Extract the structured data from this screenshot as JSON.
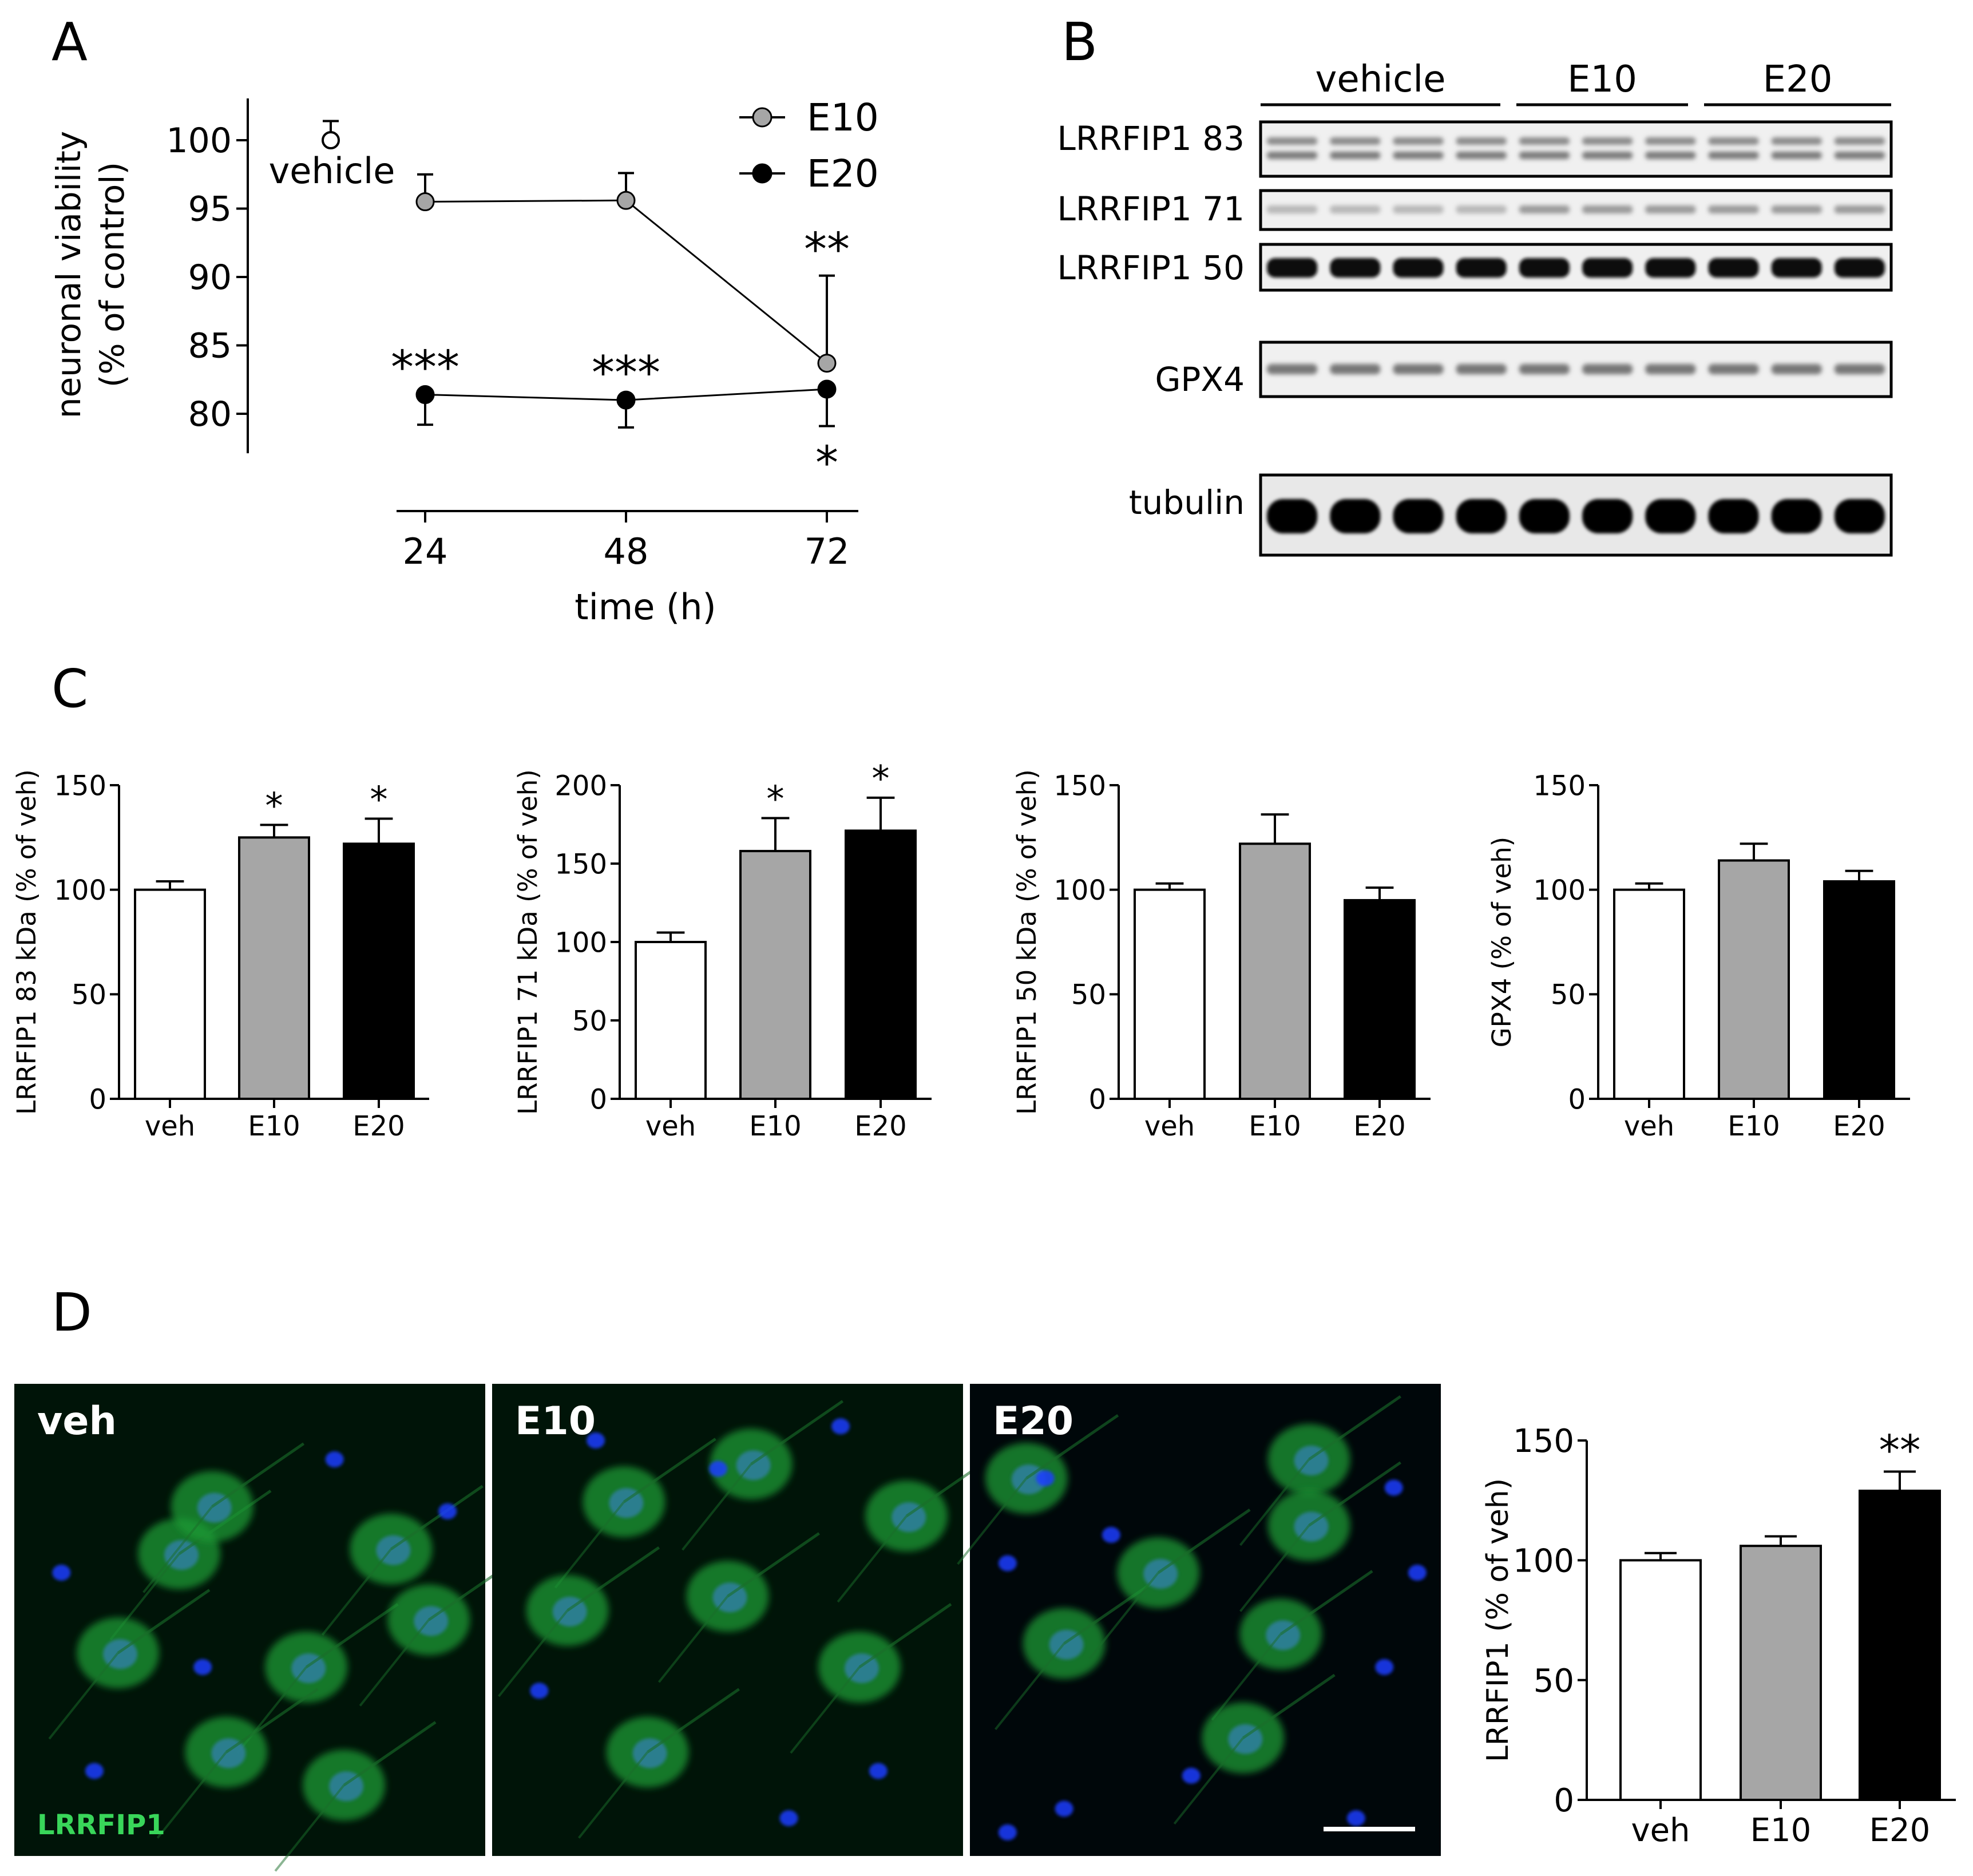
{
  "panel_letters": {
    "a": "A",
    "b": "B",
    "c": "C",
    "d": "D"
  },
  "colors": {
    "e10": "#a6a6a6",
    "e20": "#000000",
    "veh": "#ffffff",
    "axis": "#000000",
    "stain_green": "#39d65a",
    "stain_blue": "#1f3dff"
  },
  "chart_data": [
    {
      "id": "A",
      "type": "line",
      "xlabel": "time (h)",
      "ylabel_line1": "neuronal viability",
      "ylabel_line2": "(% of control)",
      "x": [
        24,
        48,
        72
      ],
      "x_ticks": [
        "24",
        "48",
        "72"
      ],
      "y_ticks": [
        "100",
        "95",
        "90",
        "85",
        "80"
      ],
      "ylim": [
        77,
        103
      ],
      "vehicle": {
        "label": "vehicle",
        "value": 100,
        "error": 1.4
      },
      "series": [
        {
          "name": "E10",
          "color": "#a6a6a6",
          "values": [
            95.5,
            95.6,
            83.7
          ],
          "errors": [
            2.0,
            2.0,
            6.4
          ],
          "annotations": [
            "",
            "",
            "**"
          ]
        },
        {
          "name": "E20",
          "color": "#000000",
          "values": [
            81.4,
            81.0,
            81.8
          ],
          "errors": [
            2.2,
            2.0,
            2.7
          ],
          "annotations": [
            "***",
            "***",
            "*"
          ]
        }
      ],
      "legend": "top-right"
    },
    {
      "id": "C1",
      "type": "bar",
      "ylabel": "LRRFIP1 83 kDa (% of veh)",
      "categories": [
        "veh",
        "E10",
        "E20"
      ],
      "values": [
        100,
        125,
        122
      ],
      "errors": [
        4,
        6,
        12
      ],
      "annotations": [
        "",
        "*",
        "*"
      ],
      "ylim": [
        0,
        150
      ],
      "y_ticks": [
        "0",
        "50",
        "100",
        "150"
      ]
    },
    {
      "id": "C2",
      "type": "bar",
      "ylabel": "LRRFIP1 71 kDa (% of veh)",
      "categories": [
        "veh",
        "E10",
        "E20"
      ],
      "values": [
        100,
        158,
        171
      ],
      "errors": [
        6,
        21,
        21
      ],
      "annotations": [
        "",
        "*",
        "*"
      ],
      "ylim": [
        0,
        200
      ],
      "y_ticks": [
        "0",
        "50",
        "100",
        "150",
        "200"
      ]
    },
    {
      "id": "C3",
      "type": "bar",
      "ylabel": "LRRFIP1 50 kDa (% of veh)",
      "categories": [
        "veh",
        "E10",
        "E20"
      ],
      "values": [
        100,
        122,
        95
      ],
      "errors": [
        3,
        14,
        6
      ],
      "annotations": [
        "",
        "",
        ""
      ],
      "ylim": [
        0,
        150
      ],
      "y_ticks": [
        "0",
        "50",
        "100",
        "150"
      ]
    },
    {
      "id": "C4",
      "type": "bar",
      "ylabel": "GPX4 (% of veh)",
      "categories": [
        "veh",
        "E10",
        "E20"
      ],
      "values": [
        100,
        114,
        104
      ],
      "errors": [
        3,
        8,
        5
      ],
      "annotations": [
        "",
        "",
        ""
      ],
      "ylim": [
        0,
        150
      ],
      "y_ticks": [
        "0",
        "50",
        "100",
        "150"
      ]
    },
    {
      "id": "D",
      "type": "bar",
      "ylabel": "LRRFIP1 (% of veh)",
      "categories": [
        "veh",
        "E10",
        "E20"
      ],
      "values": [
        100,
        106,
        129
      ],
      "errors": [
        3,
        4,
        8
      ],
      "annotations": [
        "",
        "",
        "**"
      ],
      "ylim": [
        0,
        150
      ],
      "y_ticks": [
        "0",
        "50",
        "100",
        "150"
      ]
    }
  ],
  "blot": {
    "groups": [
      {
        "label": "vehicle",
        "lanes": 4
      },
      {
        "label": "E10",
        "lanes": 3
      },
      {
        "label": "E20",
        "lanes": 3
      }
    ],
    "rows": [
      {
        "label": "LRRFIP1 83",
        "band": "double-faint"
      },
      {
        "label": "LRRFIP1 71",
        "band": "faint"
      },
      {
        "label": "LRRFIP1 50",
        "band": "strong"
      },
      {
        "label": "GPX4",
        "band": "medium"
      },
      {
        "label": "tubulin",
        "band": "very-strong"
      }
    ]
  },
  "micrographs": [
    {
      "label": "veh",
      "stain": "LRRFIP1",
      "scale_bar": true
    },
    {
      "label": "E10",
      "stain": "",
      "scale_bar": false
    },
    {
      "label": "E20",
      "stain": "",
      "scale_bar": true
    }
  ]
}
